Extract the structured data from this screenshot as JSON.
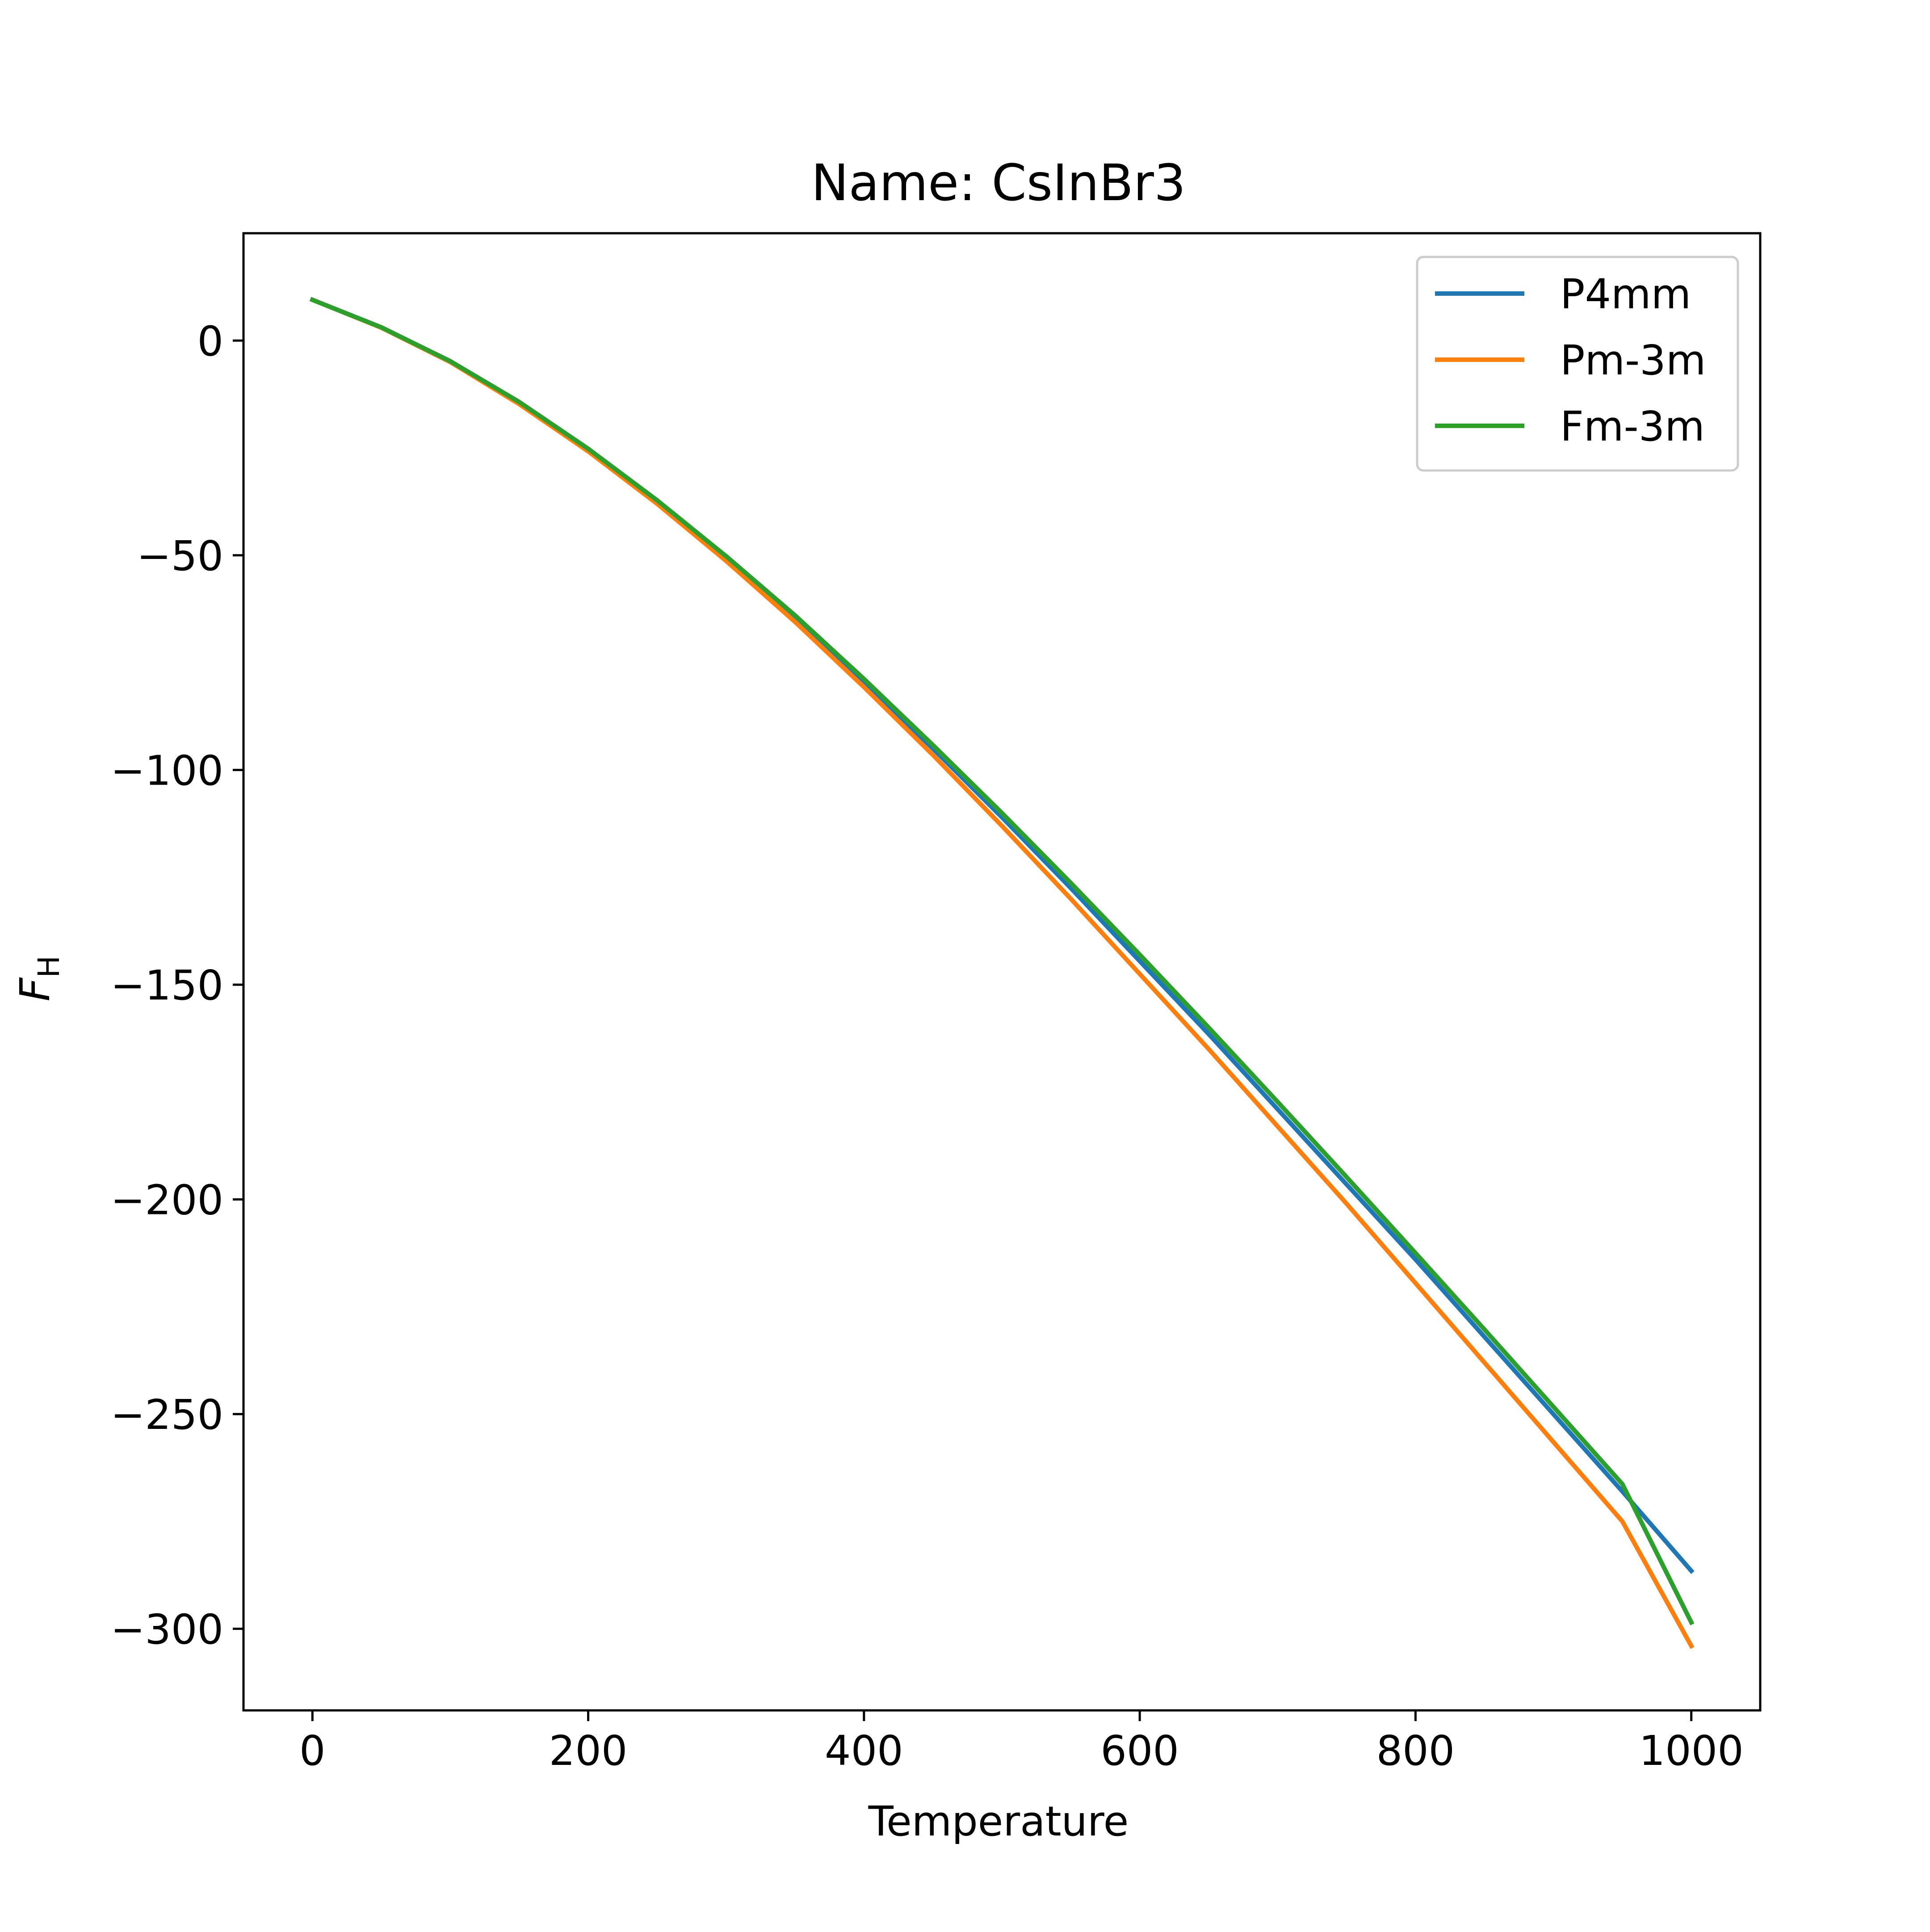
{
  "chart_data": {
    "type": "line",
    "title": "Name: CsInBr3",
    "xlabel": "Temperature",
    "ylabel": "F",
    "ylabel_subscript": "H",
    "xlim": [
      -50,
      1050
    ],
    "ylim": [
      -319,
      25
    ],
    "x_ticks": [
      0,
      200,
      400,
      600,
      800,
      1000
    ],
    "x_tick_labels": [
      "0",
      "200",
      "400",
      "600",
      "800",
      "1000"
    ],
    "y_ticks": [
      0,
      -50,
      -100,
      -150,
      -200,
      -250,
      -300
    ],
    "y_tick_labels": [
      "0",
      "−50",
      "−100",
      "−150",
      "−200",
      "−250",
      "−300"
    ],
    "grid": false,
    "legend_position": "top-right",
    "x": [
      0,
      50,
      100,
      150,
      200,
      250,
      300,
      350,
      400,
      450,
      500,
      550,
      600,
      650,
      700,
      750,
      800,
      850,
      900,
      950,
      1000
    ],
    "series": [
      {
        "name": "P4mm",
        "color": "#1f77b4",
        "values": [
          9.5,
          3.0,
          -5.0,
          -14.5,
          -25.5,
          -37.5,
          -50.5,
          -64.5,
          -79.5,
          -95.0,
          -111.0,
          -127.5,
          -144.5,
          -161.5,
          -179.0,
          -196.5,
          -214.0,
          -232.0,
          -250.0,
          -268.0,
          -286.5
        ]
      },
      {
        "name": "Pm-3m",
        "color": "#ff7f0e",
        "values": [
          9.5,
          3.0,
          -5.0,
          -14.8,
          -25.8,
          -38.0,
          -51.3,
          -65.5,
          -80.7,
          -96.5,
          -113.0,
          -130.0,
          -147.5,
          -165.0,
          -183.0,
          -201.0,
          -219.5,
          -238.0,
          -256.5,
          -275.0,
          -304.0
        ]
      },
      {
        "name": "Fm-3m",
        "color": "#2ca02c",
        "values": [
          9.5,
          3.1,
          -4.8,
          -14.3,
          -25.2,
          -37.2,
          -50.2,
          -64.0,
          -78.8,
          -94.2,
          -110.0,
          -126.3,
          -143.0,
          -160.0,
          -177.3,
          -194.8,
          -212.5,
          -230.3,
          -248.3,
          -266.3,
          -298.5
        ]
      }
    ]
  }
}
